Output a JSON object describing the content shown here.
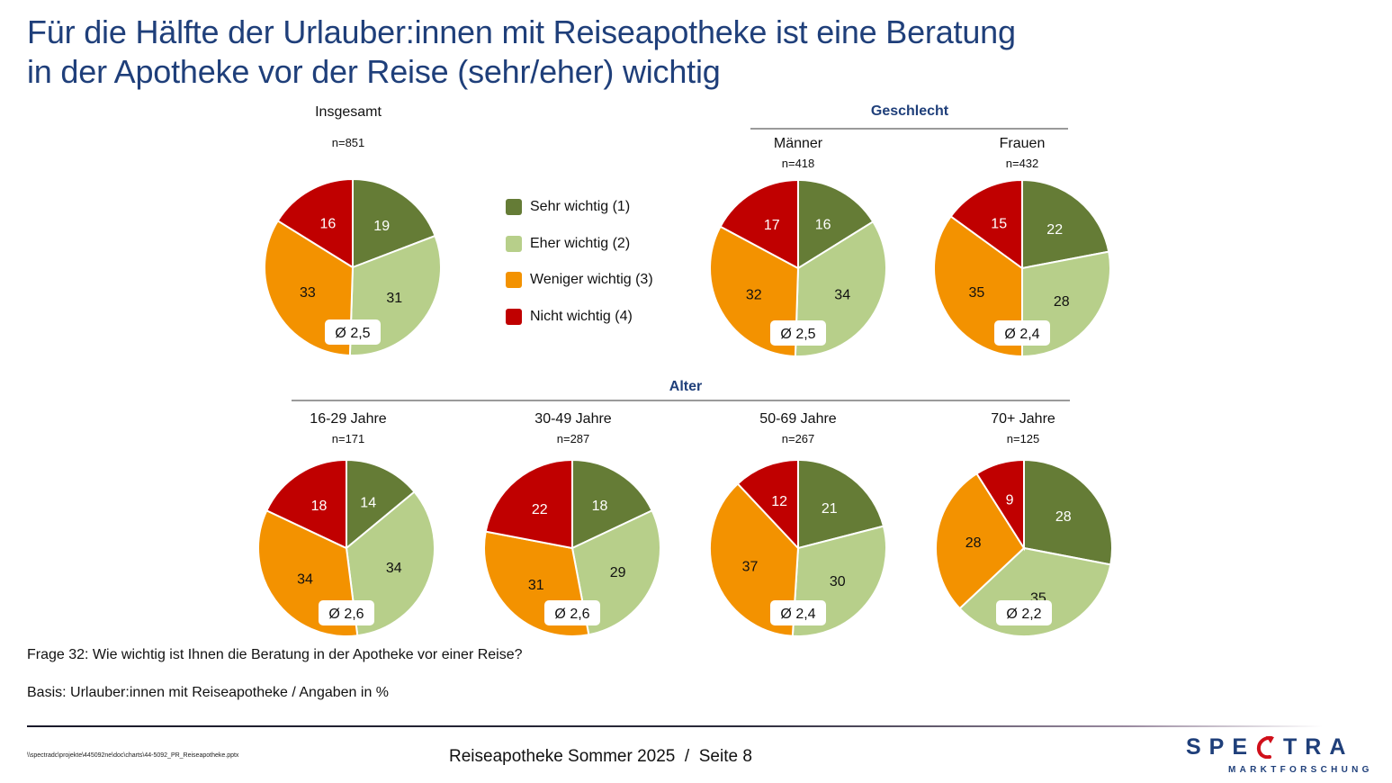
{
  "title_line1": "Für die Hälfte der Urlauber:innen mit Reiseapotheke ist eine Beratung",
  "title_line2": "in der Apotheke vor der Reise (sehr/eher) wichtig",
  "groups": {
    "geschlecht": "Geschlecht",
    "alter": "Alter"
  },
  "legend": [
    {
      "label": "Sehr wichtig (1)",
      "color": "#657C36"
    },
    {
      "label": "Eher wichtig (2)",
      "color": "#B7CF8A"
    },
    {
      "label": "Weniger wichtig (3)",
      "color": "#F39200"
    },
    {
      "label": "Nicht wichtig (4)",
      "color": "#C00000"
    }
  ],
  "chart_data": [
    {
      "type": "pie",
      "title": "Insgesamt",
      "n": "n=851",
      "categories": [
        "Sehr wichtig (1)",
        "Eher wichtig (2)",
        "Weniger wichtig (3)",
        "Nicht wichtig (4)"
      ],
      "values": [
        19,
        31,
        33,
        16
      ],
      "mean_label": "Ø 2,5"
    },
    {
      "type": "pie",
      "title": "Männer",
      "group": "Geschlecht",
      "n": "n=418",
      "categories": [
        "Sehr wichtig (1)",
        "Eher wichtig (2)",
        "Weniger wichtig (3)",
        "Nicht wichtig (4)"
      ],
      "values": [
        16,
        34,
        32,
        17
      ],
      "mean_label": "Ø 2,5"
    },
    {
      "type": "pie",
      "title": "Frauen",
      "group": "Geschlecht",
      "n": "n=432",
      "categories": [
        "Sehr wichtig (1)",
        "Eher wichtig (2)",
        "Weniger wichtig (3)",
        "Nicht wichtig (4)"
      ],
      "values": [
        22,
        28,
        35,
        15
      ],
      "mean_label": "Ø 2,4"
    },
    {
      "type": "pie",
      "title": "16-29 Jahre",
      "group": "Alter",
      "n": "n=171",
      "categories": [
        "Sehr wichtig (1)",
        "Eher wichtig (2)",
        "Weniger wichtig (3)",
        "Nicht wichtig (4)"
      ],
      "values": [
        14,
        34,
        34,
        18
      ],
      "mean_label": "Ø 2,6"
    },
    {
      "type": "pie",
      "title": "30-49 Jahre",
      "group": "Alter",
      "n": "n=287",
      "categories": [
        "Sehr wichtig (1)",
        "Eher wichtig (2)",
        "Weniger wichtig (3)",
        "Nicht wichtig (4)"
      ],
      "values": [
        18,
        29,
        31,
        22
      ],
      "mean_label": "Ø 2,6"
    },
    {
      "type": "pie",
      "title": "50-69 Jahre",
      "group": "Alter",
      "n": "n=267",
      "categories": [
        "Sehr wichtig (1)",
        "Eher wichtig (2)",
        "Weniger wichtig (3)",
        "Nicht wichtig (4)"
      ],
      "values": [
        21,
        30,
        37,
        12
      ],
      "mean_label": "Ø 2,4"
    },
    {
      "type": "pie",
      "title": "70+ Jahre",
      "group": "Alter",
      "n": "n=125",
      "categories": [
        "Sehr wichtig (1)",
        "Eher wichtig (2)",
        "Weniger wichtig (3)",
        "Nicht wichtig (4)"
      ],
      "values": [
        28,
        35,
        28,
        9
      ],
      "mean_label": "Ø 2,2"
    }
  ],
  "label_text_colors": [
    "#ffffff",
    "#111111",
    "#111111",
    "#ffffff"
  ],
  "footnotes": {
    "question": "Frage 32: Wie wichtig ist Ihnen die Beratung in der Apotheke vor einer Reise?",
    "basis": "Basis: Urlauber:innen mit Reiseapotheke / Angaben in %"
  },
  "footer": {
    "filepath": "\\\\spectradc\\projekte\\445092ne\\doc\\charts\\44-5092_PR_Reiseapotheke.pptx",
    "page": "Reiseapotheke Sommer 2025  /  Seite 8"
  },
  "logo": {
    "main_left": "SPE",
    "main_right": "TRA",
    "sub": "MARKTFORSCHUNG"
  }
}
